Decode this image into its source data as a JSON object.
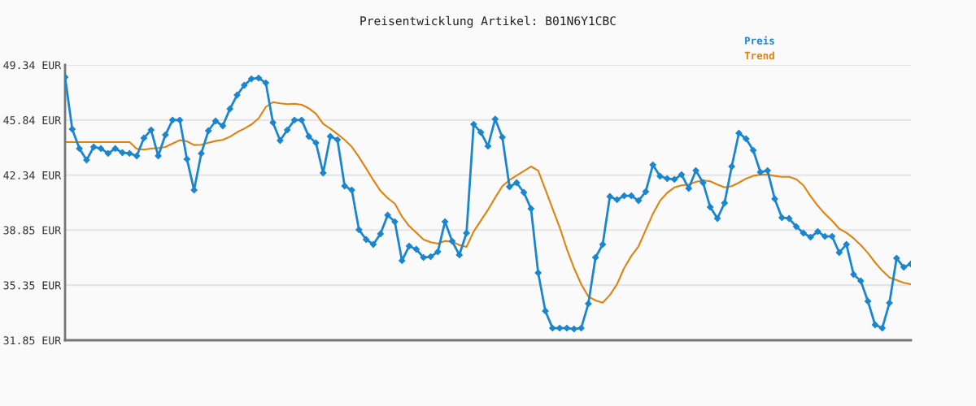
{
  "chart_data": {
    "type": "line",
    "title": "Preisentwicklung Artikel: B01N6Y1CBC",
    "categories": [
      null,
      null,
      null,
      null,
      null,
      null,
      null,
      null,
      null,
      null,
      null,
      null,
      null,
      null,
      null,
      null,
      null,
      null,
      null,
      null,
      null,
      null,
      null,
      null,
      null,
      null,
      null,
      null,
      null,
      null,
      null,
      null,
      null,
      null,
      null,
      null,
      null,
      null,
      null,
      null,
      null,
      null,
      null,
      null,
      null,
      null,
      null,
      null,
      null,
      null,
      null,
      null,
      null,
      null,
      null,
      null,
      null,
      null,
      null,
      null,
      null,
      null,
      null,
      null,
      null,
      null,
      null,
      null,
      null,
      null,
      null,
      null,
      null,
      null,
      null,
      null,
      null,
      null,
      null,
      null,
      null,
      null,
      null,
      null,
      null,
      null,
      null,
      null,
      null,
      null,
      null,
      null,
      null,
      null,
      null,
      null,
      null,
      null,
      null,
      null,
      null,
      null,
      null,
      null,
      null,
      null,
      null,
      null,
      null,
      null,
      null,
      null,
      null,
      null,
      null,
      null,
      null,
      null,
      null
    ],
    "series": [
      {
        "name": "Preis",
        "color": "#1a86cf",
        "marker": "diamond",
        "values": [
          48.57,
          45.26,
          44.03,
          43.3,
          44.13,
          44.03,
          43.72,
          44.03,
          43.77,
          43.72,
          43.56,
          44.7,
          45.21,
          43.56,
          44.9,
          45.84,
          45.84,
          43.36,
          41.39,
          43.72,
          45.16,
          45.78,
          45.47,
          46.55,
          47.43,
          48.05,
          48.46,
          48.51,
          48.2,
          45.68,
          44.54,
          45.21,
          45.84,
          45.84,
          44.8,
          44.39,
          42.48,
          44.8,
          44.59,
          41.65,
          41.39,
          38.87,
          38.25,
          37.94,
          38.61,
          39.8,
          39.38,
          36.91,
          37.83,
          37.63,
          37.11,
          37.16,
          37.47,
          39.38,
          38.14,
          37.27,
          38.66,
          45.57,
          45.06,
          44.18,
          45.9,
          44.75,
          41.6,
          41.86,
          41.24,
          40.21,
          36.13,
          33.71,
          32.62,
          32.62,
          32.62,
          32.57,
          32.62,
          34.17,
          37.11,
          37.94,
          40.98,
          40.78,
          41.03,
          41.03,
          40.72,
          41.29,
          42.99,
          42.27,
          42.12,
          42.07,
          42.37,
          41.5,
          42.63,
          41.86,
          40.31,
          39.59,
          40.57,
          42.89,
          45.01,
          44.65,
          43.92,
          42.53,
          42.63,
          40.83,
          39.64,
          39.59,
          39.07,
          38.66,
          38.4,
          38.76,
          38.45,
          38.45,
          37.42,
          37.94,
          36.03,
          35.62,
          34.33,
          32.83,
          32.62,
          34.22,
          37.06,
          36.49,
          36.7
        ]
      },
      {
        "name": "Trend",
        "color": "#e0820f",
        "marker": "none",
        "values": [
          44.44,
          44.44,
          44.44,
          44.44,
          44.44,
          44.44,
          44.44,
          44.44,
          44.44,
          44.44,
          44.01,
          43.96,
          44.03,
          44.06,
          44.13,
          44.35,
          44.56,
          44.49,
          44.25,
          44.27,
          44.4,
          44.51,
          44.58,
          44.78,
          45.07,
          45.3,
          45.56,
          45.95,
          46.67,
          46.98,
          46.9,
          46.85,
          46.88,
          46.81,
          46.59,
          46.24,
          45.61,
          45.3,
          44.95,
          44.58,
          44.14,
          43.49,
          42.77,
          42.03,
          41.34,
          40.88,
          40.53,
          39.71,
          39.11,
          38.68,
          38.25,
          38.08,
          37.99,
          38.16,
          38.11,
          37.9,
          37.78,
          38.76,
          39.45,
          40.14,
          40.91,
          41.64,
          42.03,
          42.32,
          42.6,
          42.89,
          42.63,
          41.43,
          40.22,
          39.02,
          37.64,
          36.44,
          35.41,
          34.63,
          34.38,
          34.24,
          34.72,
          35.41,
          36.44,
          37.21,
          37.82,
          38.85,
          39.88,
          40.71,
          41.22,
          41.56,
          41.69,
          41.74,
          41.91,
          42.01,
          41.95,
          41.74,
          41.56,
          41.64,
          41.86,
          42.12,
          42.29,
          42.37,
          42.37,
          42.29,
          42.23,
          42.23,
          42.08,
          41.69,
          41.0,
          40.4,
          39.88,
          39.45,
          38.93,
          38.68,
          38.33,
          37.9,
          37.39,
          36.79,
          36.27,
          35.84,
          35.67,
          35.5,
          35.41
        ]
      }
    ],
    "ylim": [
      31.85,
      49.34
    ],
    "yticks": [
      {
        "value": 31.85,
        "label": "31.85 EUR"
      },
      {
        "value": 35.35,
        "label": "35.35 EUR"
      },
      {
        "value": 38.85,
        "label": "38.85 EUR"
      },
      {
        "value": 42.34,
        "label": "42.34 EUR"
      },
      {
        "value": 45.84,
        "label": "45.84 EUR"
      },
      {
        "value": 49.34,
        "label": "49.34 EUR"
      }
    ],
    "grid": "y",
    "legend": "top right",
    "line_style": "solid",
    "tick_labels": "y"
  }
}
